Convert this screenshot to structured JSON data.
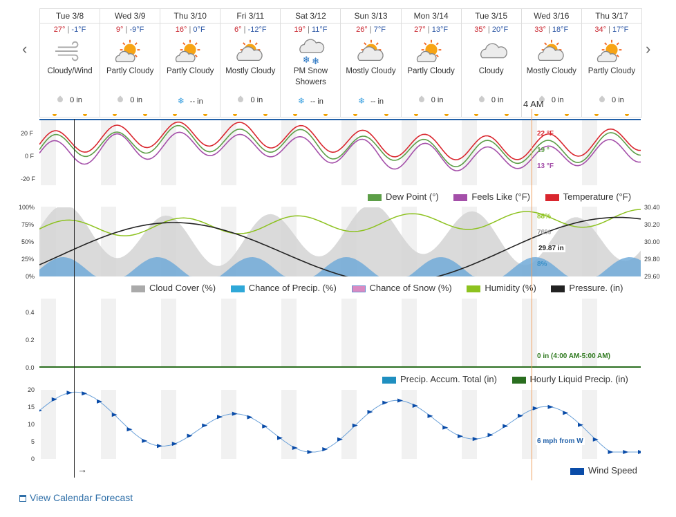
{
  "days": [
    {
      "date": "Tue 3/8",
      "high": "27°",
      "low": "-1°F",
      "condition": "Cloudy/Wind",
      "icon": "wind-icon",
      "precip_kind": "rain",
      "precip": "0 in"
    },
    {
      "date": "Wed 3/9",
      "high": "9°",
      "low": "-9°F",
      "condition": "Partly Cloudy",
      "icon": "partly-cloudy-icon",
      "precip_kind": "rain",
      "precip": "0 in"
    },
    {
      "date": "Thu 3/10",
      "high": "16°",
      "low": "0°F",
      "condition": "Partly Cloudy",
      "icon": "partly-cloudy-icon",
      "precip_kind": "snow",
      "precip": "-- in"
    },
    {
      "date": "Fri 3/11",
      "high": "6°",
      "low": "-12°F",
      "condition": "Mostly Cloudy",
      "icon": "mostly-cloudy-icon",
      "precip_kind": "rain",
      "precip": "0 in"
    },
    {
      "date": "Sat 3/12",
      "high": "19°",
      "low": "11°F",
      "condition": "PM Snow Showers",
      "icon": "snow-showers-icon",
      "precip_kind": "snow",
      "precip": "-- in"
    },
    {
      "date": "Sun 3/13",
      "high": "26°",
      "low": "7°F",
      "condition": "Mostly Cloudy",
      "icon": "mostly-cloudy-icon",
      "precip_kind": "snow",
      "precip": "-- in"
    },
    {
      "date": "Mon 3/14",
      "high": "27°",
      "low": "13°F",
      "condition": "Partly Cloudy",
      "icon": "partly-cloudy-icon",
      "precip_kind": "rain",
      "precip": "0 in"
    },
    {
      "date": "Tue 3/15",
      "high": "35°",
      "low": "20°F",
      "condition": "Cloudy",
      "icon": "cloudy-icon",
      "precip_kind": "rain",
      "precip": "0 in"
    },
    {
      "date": "Wed 3/16",
      "high": "33°",
      "low": "18°F",
      "condition": "Mostly Cloudy",
      "icon": "mostly-cloudy-icon",
      "precip_kind": "rain",
      "precip": "0 in"
    },
    {
      "date": "Thu 3/17",
      "high": "34°",
      "low": "17°F",
      "condition": "Partly Cloudy",
      "icon": "partly-cloudy-icon",
      "precip_kind": "rain",
      "precip": "0 in"
    }
  ],
  "current_time_label": "4 AM",
  "temp_chart": {
    "y_ticks": [
      "20 F",
      "0 F",
      "-20 F"
    ],
    "legend": [
      "Dew Point (°)",
      "Feels Like (°F)",
      "Temperature (°F)"
    ],
    "readouts": {
      "temperature": "22 °F",
      "dew_point": "19 °",
      "feels_like": "13 °F"
    },
    "colors": {
      "temperature": "#d9262e",
      "dew_point": "#5c9e47",
      "feels_like": "#a44fa9"
    }
  },
  "sky_chart": {
    "y_ticks_left": [
      "100%",
      "75%",
      "50%",
      "25%",
      "0%"
    ],
    "y_ticks_right": [
      "30.40",
      "30.20",
      "30.00",
      "29.80",
      "29.60"
    ],
    "legend": [
      "Cloud Cover (%)",
      "Chance of Precip. (%)",
      "Chance of Snow (%)",
      "Humidity (%)",
      "Pressure. (in)"
    ],
    "readouts": {
      "humidity": "88%",
      "cloud_cover": "76%",
      "pressure": "29.87 in",
      "precip_chance": "8%"
    }
  },
  "precip_chart": {
    "y_ticks": [
      "0.4",
      "0.2",
      "0.0"
    ],
    "legend": [
      "Precip. Accum. Total (in)",
      "Hourly Liquid Precip. (in)"
    ],
    "readout": "0 in (4:00 AM-5:00 AM)"
  },
  "wind_chart": {
    "y_ticks": [
      "20",
      "15",
      "10",
      "5",
      "0"
    ],
    "legend": [
      "Wind Speed"
    ],
    "readout": "6 mph from W",
    "arrow": "→"
  },
  "calendar_link": "View Calendar Forecast",
  "nav": {
    "prev": "‹",
    "next": "›"
  }
}
